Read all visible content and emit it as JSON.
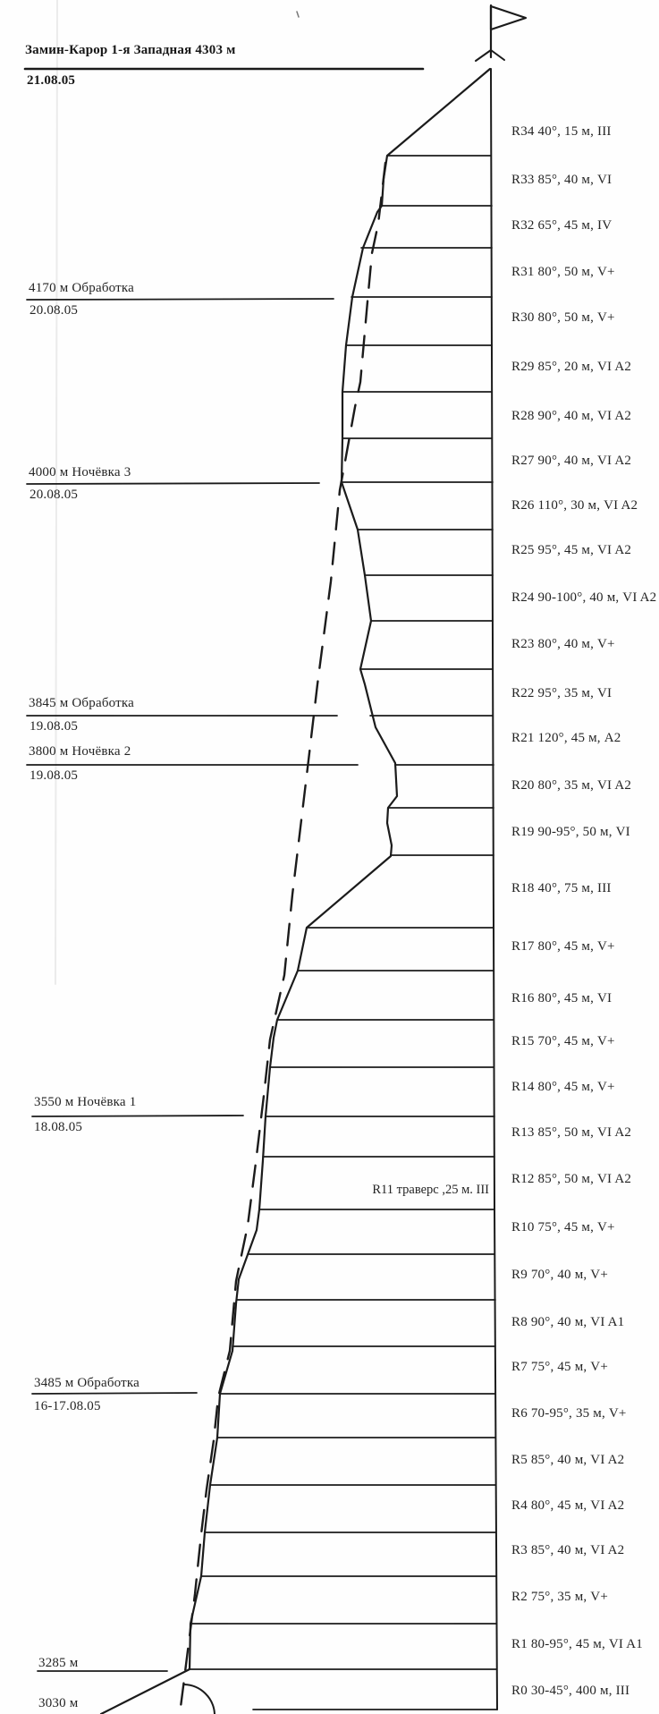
{
  "document": {
    "type": "climbing-route-topo",
    "title": "Замин-Карор 1-я Западная 4303 м",
    "summit_date": "21.08.05"
  },
  "colors": {
    "ink": "#1b1b1b",
    "paper": "#fefefe"
  },
  "icons": {
    "summit_flag": "flag-icon",
    "summit_mark": "summit-bird-icon"
  },
  "waypoints": [
    {
      "label": "4170 м Обработка",
      "date": "20.08.05"
    },
    {
      "label": "4000 м Ночёвка 3",
      "date": "20.08.05"
    },
    {
      "label": "3845 м Обработка",
      "date": "19.08.05"
    },
    {
      "label": "3800 м Ночёвка 2",
      "date": "19.08.05"
    },
    {
      "label": "3550 м Ночёвка 1",
      "date": "18.08.05"
    },
    {
      "label": "3485 м Обработка",
      "date": "16-17.08.05"
    },
    {
      "label": "3285 м",
      "date": ""
    },
    {
      "label": "3030 м",
      "date": ""
    }
  ],
  "traverse_pitch": {
    "text": "R11 траверс ,25 м. III"
  },
  "pitches": [
    {
      "id": "R34",
      "text": "R34 40°, 15 м, III"
    },
    {
      "id": "R33",
      "text": "R33 85°, 40 м, VI"
    },
    {
      "id": "R32",
      "text": "R32 65°, 45 м, IV"
    },
    {
      "id": "R31",
      "text": "R31 80°, 50 м, V+"
    },
    {
      "id": "R30",
      "text": "R30 80°, 50 м, V+"
    },
    {
      "id": "R29",
      "text": "R29 85°, 20 м, VI A2"
    },
    {
      "id": "R28",
      "text": "R28 90°, 40 м, VI A2"
    },
    {
      "id": "R27",
      "text": "R27 90°, 40 м, VI A2"
    },
    {
      "id": "R26",
      "text": "R26 110°, 30 м, VI A2"
    },
    {
      "id": "R25",
      "text": "R25 95°, 45 м, VI A2"
    },
    {
      "id": "R24",
      "text": "R24 90-100°, 40 м, VI A2"
    },
    {
      "id": "R23",
      "text": "R23 80°, 40 м, V+"
    },
    {
      "id": "R22",
      "text": "R22 95°, 35 м, VI"
    },
    {
      "id": "R21",
      "text": "R21 120°, 45 м, A2"
    },
    {
      "id": "R20",
      "text": "R20 80°, 35 м, VI A2"
    },
    {
      "id": "R19",
      "text": "R19 90-95°, 50 м, VI"
    },
    {
      "id": "R18",
      "text": "R18 40°, 75 м, III"
    },
    {
      "id": "R17",
      "text": "R17 80°, 45 м, V+"
    },
    {
      "id": "R16",
      "text": "R16 80°, 45 м, VI"
    },
    {
      "id": "R15",
      "text": "R15 70°, 45 м, V+"
    },
    {
      "id": "R14",
      "text": "R14 80°, 45 м, V+"
    },
    {
      "id": "R13",
      "text": "R13 85°, 50 м, VI A2"
    },
    {
      "id": "R12",
      "text": "R12 85°, 50 м, VI A2"
    },
    {
      "id": "R10",
      "text": "R10 75°, 45 м, V+"
    },
    {
      "id": "R9",
      "text": "R9 70°, 40 м, V+"
    },
    {
      "id": "R8",
      "text": "R8 90°, 40 м, VI A1"
    },
    {
      "id": "R7",
      "text": "R7 75°, 45 м, V+"
    },
    {
      "id": "R6",
      "text": "R6 70-95°, 35 м, V+"
    },
    {
      "id": "R5",
      "text": "R5 85°, 40 м, VI A2"
    },
    {
      "id": "R4",
      "text": "R4 80°, 45 м, VI A2"
    },
    {
      "id": "R3",
      "text": "R3 85°, 40 м, VI A2"
    },
    {
      "id": "R2",
      "text": "R2 75°, 35 м, V+"
    },
    {
      "id": "R1",
      "text": "R1 80-95°, 45 м, VI A1"
    },
    {
      "id": "R0",
      "text": "R0 30-45°, 400 м, III"
    }
  ]
}
